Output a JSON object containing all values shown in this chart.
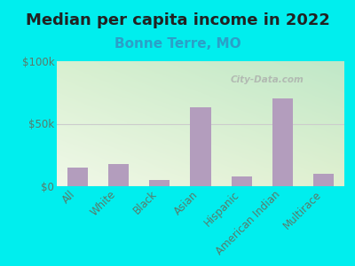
{
  "title": "Median per capita income in 2022",
  "subtitle": "Bonne Terre, MO",
  "categories": [
    "All",
    "White",
    "Black",
    "Asian",
    "Hispanic",
    "American Indian",
    "Multirace"
  ],
  "values": [
    15000,
    17500,
    5000,
    63000,
    8000,
    70000,
    10000
  ],
  "bar_color": "#b39dbd",
  "background_outer": "#00EEEE",
  "background_inner_top_left": "#eaf5e4",
  "background_inner_bottom_right": "#c8edd8",
  "title_color": "#222222",
  "subtitle_color": "#2aa0c8",
  "tick_label_color": "#5a7a6a",
  "ytick_labels": [
    "$0",
    "$50k",
    "$100k"
  ],
  "ytick_values": [
    0,
    50000,
    100000
  ],
  "ylim": [
    0,
    100000
  ],
  "watermark": "City-Data.com",
  "title_fontsize": 13,
  "subtitle_fontsize": 11,
  "tick_fontsize": 8.5,
  "xlabel_fontsize": 8.5
}
